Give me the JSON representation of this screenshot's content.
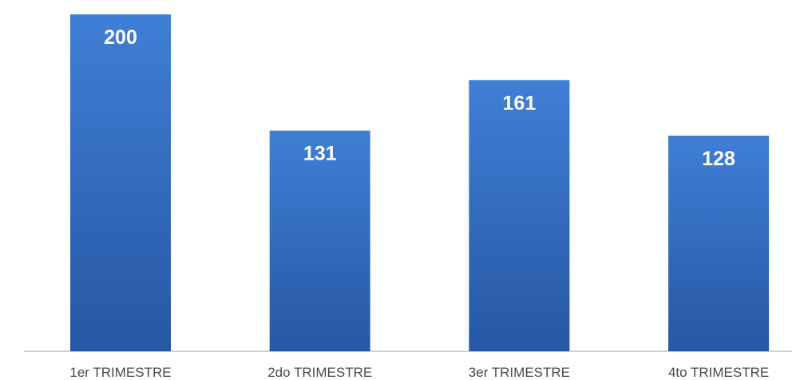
{
  "chart_data": {
    "type": "bar",
    "categories": [
      "1er TRIMESTRE",
      "2do TRIMESTRE",
      "3er TRIMESTRE",
      "4to TRIMESTRE"
    ],
    "values": [
      200,
      131,
      161,
      128
    ],
    "title": "",
    "xlabel": "",
    "ylabel": "",
    "ylim": [
      0,
      200
    ],
    "data_labels": true,
    "grid": false,
    "legend": "none",
    "colors": {
      "bar_top": "#3f7fd6",
      "bar_bottom": "#2757a3",
      "axis": "#c7d3e6",
      "value_label": "#ffffff",
      "tick_label": "#4a4a4a"
    }
  }
}
